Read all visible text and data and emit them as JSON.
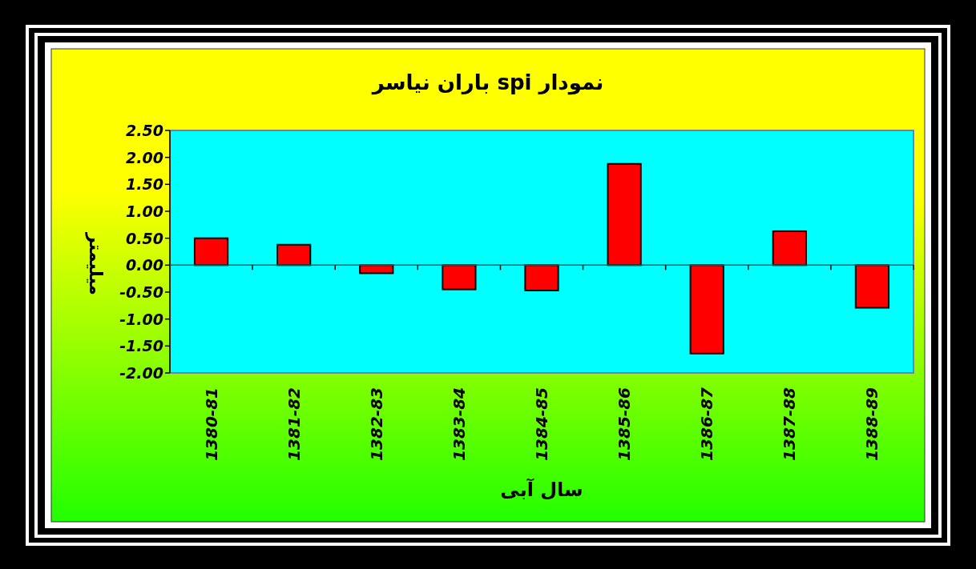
{
  "chart_data": {
    "type": "bar",
    "title": "نمودار spi  باران نیاسر",
    "xlabel": "سال آبی",
    "ylabel": "میلیمتر",
    "categories": [
      "1380-81",
      "1381-82",
      "1382-83",
      "1383-84",
      "1384-85",
      "1385-86",
      "1386-87",
      "1387-88",
      "1388-89"
    ],
    "values": [
      0.5,
      0.38,
      -0.15,
      -0.45,
      -0.47,
      1.88,
      -1.64,
      0.63,
      -0.79
    ],
    "color": "#ff0000",
    "ylim": [
      -2.0,
      2.5
    ],
    "yticks": [
      {
        "value": 2.5,
        "label": "2.50"
      },
      {
        "value": 2.0,
        "label": "2.00"
      },
      {
        "value": 1.5,
        "label": "1.50"
      },
      {
        "value": 1.0,
        "label": "1.00"
      },
      {
        "value": 0.5,
        "label": "0.50"
      },
      {
        "value": 0.0,
        "label": "0.00"
      },
      {
        "value": -0.5,
        "label": "-0.50"
      },
      {
        "value": -1.0,
        "label": "-1.00"
      },
      {
        "value": -1.5,
        "label": "-1.50"
      },
      {
        "value": -2.0,
        "label": "-2.00"
      }
    ],
    "grid": false
  }
}
